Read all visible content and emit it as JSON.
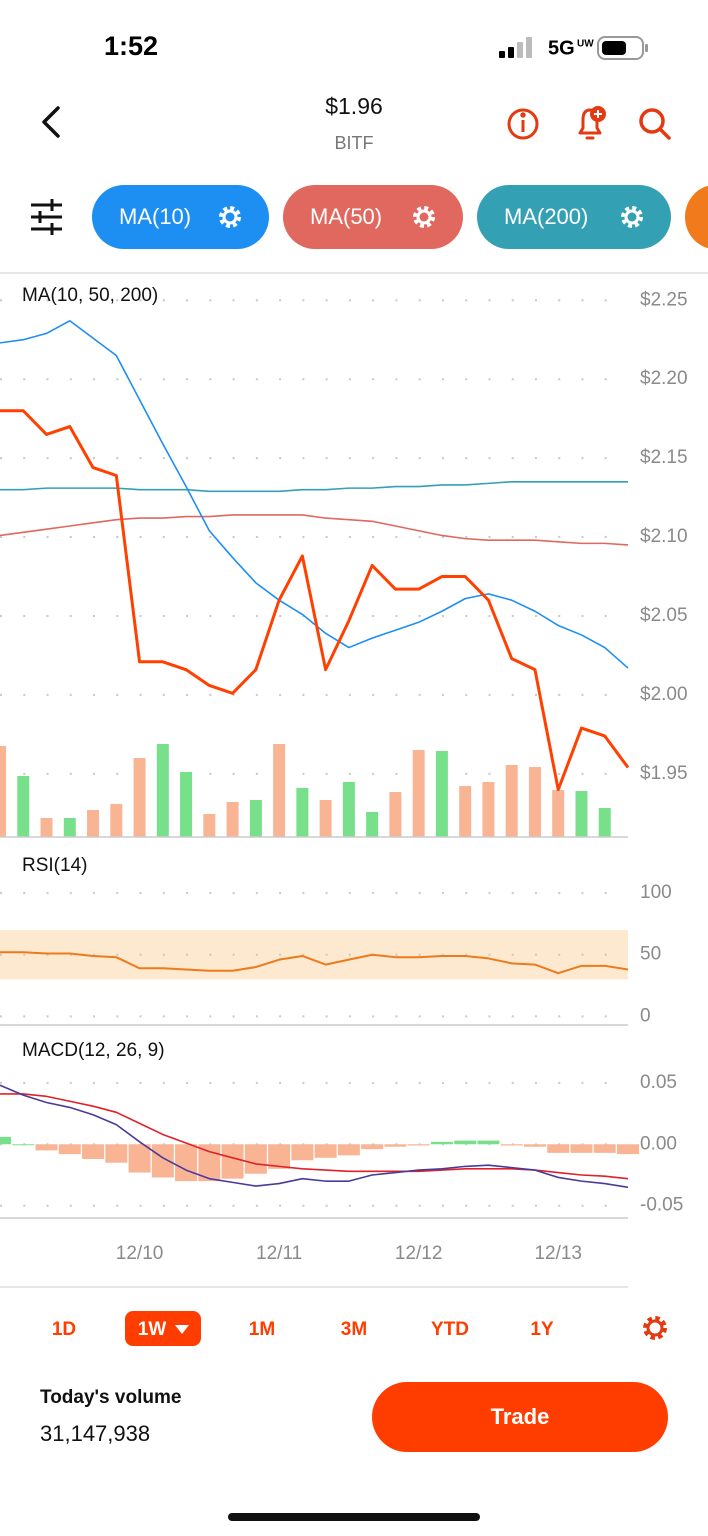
{
  "status_bar": {
    "time": "1:52",
    "network": "5G",
    "network_sub": "UW"
  },
  "header": {
    "price": "$1.96",
    "symbol": "BITF"
  },
  "chart_data": [
    {
      "type": "line",
      "title": "MA(10, 50, 200)",
      "ylim": [
        1.91,
        2.266
      ],
      "yticks": [
        {
          "value": 2.25,
          "label": "$2.25"
        },
        {
          "value": 2.2,
          "label": "$2.20"
        },
        {
          "value": 2.15,
          "label": "$2.15"
        },
        {
          "value": 2.1,
          "label": "$2.10"
        },
        {
          "value": 2.05,
          "label": "$2.05"
        },
        {
          "value": 2.0,
          "label": "$2.00"
        },
        {
          "value": 1.95,
          "label": "$1.95"
        }
      ],
      "grid": true,
      "series": [
        {
          "color": "#ff4000",
          "values": [
            2.18,
            2.18,
            2.165,
            2.17,
            2.144,
            2.139,
            2.021,
            2.021,
            2.016,
            2.006,
            2.001,
            2.016,
            2.06,
            2.088,
            2.016,
            2.047,
            2.082,
            2.067,
            2.067,
            2.075,
            2.075,
            2.06,
            2.023,
            2.016,
            1.94,
            1.979,
            1.974,
            1.954
          ]
        },
        {
          "name": "MA(10)",
          "color": "#1d8ff2",
          "values": [
            2.223,
            2.225,
            2.229,
            2.237,
            2.226,
            2.215,
            2.187,
            2.159,
            2.132,
            2.104,
            2.087,
            2.071,
            2.06,
            2.051,
            2.039,
            2.03,
            2.036,
            2.041,
            2.046,
            2.053,
            2.061,
            2.064,
            2.06,
            2.053,
            2.044,
            2.038,
            2.03,
            2.017
          ]
        },
        {
          "name": "MA(50)",
          "color": "#e0685e",
          "values": [
            2.101,
            2.103,
            2.105,
            2.107,
            2.109,
            2.111,
            2.112,
            2.112,
            2.113,
            2.113,
            2.114,
            2.114,
            2.114,
            2.114,
            2.112,
            2.111,
            2.11,
            2.107,
            2.104,
            2.101,
            2.099,
            2.098,
            2.098,
            2.098,
            2.097,
            2.096,
            2.096,
            2.095
          ]
        },
        {
          "name": "MA(200)",
          "color": "#34a0b4",
          "values": [
            2.13,
            2.13,
            2.131,
            2.131,
            2.131,
            2.131,
            2.13,
            2.13,
            2.13,
            2.129,
            2.129,
            2.129,
            2.129,
            2.13,
            2.13,
            2.131,
            2.131,
            2.132,
            2.132,
            2.133,
            2.133,
            2.134,
            2.135,
            2.135,
            2.135,
            2.135,
            2.135,
            2.135
          ]
        }
      ],
      "volume": {
        "values": [
          91,
          61,
          19,
          19,
          27,
          33,
          79,
          93,
          65,
          23,
          35,
          37,
          93,
          49,
          37,
          55,
          25,
          45,
          87,
          86,
          51,
          55,
          72,
          70,
          47,
          46,
          29,
          null
        ],
        "colors": [
          "#f9b494",
          "#78e08a",
          "#f9b494",
          "#78e08a",
          "#f9b494",
          "#f9b494",
          "#f9b494",
          "#78e08a",
          "#78e08a",
          "#f9b494",
          "#f9b494",
          "#78e08a",
          "#f9b494",
          "#78e08a",
          "#f9b494",
          "#78e08a",
          "#78e08a",
          "#f9b494",
          "#f9b494",
          "#78e08a",
          "#f9b494",
          "#f9b494",
          "#f9b494",
          "#f9b494",
          "#f9b494",
          "#78e08a",
          "#78e08a",
          null
        ]
      }
    },
    {
      "type": "line",
      "title": "RSI(14)",
      "ylim": [
        -7,
        139
      ],
      "yticks": [
        100,
        50,
        0
      ],
      "grid": true,
      "band": [
        30,
        70
      ],
      "band_color": "#fde2c4",
      "series": [
        {
          "color": "#ee7a1a",
          "values": [
            52,
            52,
            51,
            51,
            49,
            48,
            39,
            39,
            38,
            37,
            37,
            40,
            46,
            49,
            42,
            46,
            50,
            48,
            48,
            49,
            49,
            47,
            43,
            42,
            35,
            41,
            41,
            38
          ]
        }
      ]
    },
    {
      "type": "line",
      "title": "MACD(12, 26, 9)",
      "categories": [
        null,
        null,
        null,
        null,
        null,
        null,
        "12/10",
        null,
        null,
        null,
        null,
        null,
        "12/11",
        null,
        null,
        null,
        null,
        null,
        "12/12",
        null,
        null,
        null,
        null,
        null,
        "12/13",
        null,
        null,
        null
      ],
      "ylim": [
        -0.06,
        0.093
      ],
      "yticks": [
        0.05,
        {
          "value": 0,
          "label": "0.00"
        },
        -0.05
      ],
      "grid": true,
      "series": [
        {
          "color": "#4b3a9a",
          "values": [
            0.048,
            0.04,
            0.034,
            0.03,
            0.024,
            0.016,
            0.002,
            -0.011,
            -0.021,
            -0.028,
            -0.031,
            -0.034,
            -0.032,
            -0.028,
            -0.03,
            -0.03,
            -0.025,
            -0.023,
            -0.021,
            -0.02,
            -0.018,
            -0.017,
            -0.019,
            -0.021,
            -0.027,
            -0.03,
            -0.032,
            -0.035
          ]
        },
        {
          "color": "#e0202a",
          "values": [
            0.041,
            0.041,
            0.039,
            0.035,
            0.031,
            0.026,
            0.017,
            0.008,
            0.001,
            -0.006,
            -0.011,
            -0.016,
            -0.018,
            -0.02,
            -0.021,
            -0.022,
            -0.022,
            -0.022,
            -0.022,
            -0.021,
            -0.02,
            -0.02,
            -0.02,
            -0.021,
            -0.023,
            -0.025,
            -0.026,
            -0.028
          ]
        }
      ],
      "histogram": {
        "up_color": "#78e08a",
        "down_color": "#f9b494",
        "values": [
          0.006,
          0.0,
          -0.005,
          -0.008,
          -0.012,
          -0.015,
          -0.023,
          -0.027,
          -0.03,
          -0.03,
          -0.028,
          -0.024,
          -0.02,
          -0.013,
          -0.011,
          -0.009,
          -0.004,
          -0.002,
          -0.001,
          0.002,
          0.003,
          0.003,
          -0.001,
          -0.002,
          -0.007,
          -0.007,
          -0.007,
          -0.008
        ]
      }
    }
  ],
  "timeframes": {
    "options": [
      "1D",
      "1W",
      "1M",
      "3M",
      "YTD",
      "1Y"
    ],
    "selected": "1W"
  },
  "footer": {
    "volume_label": "Today's volume",
    "volume": "31,147,938",
    "button": "Trade"
  }
}
